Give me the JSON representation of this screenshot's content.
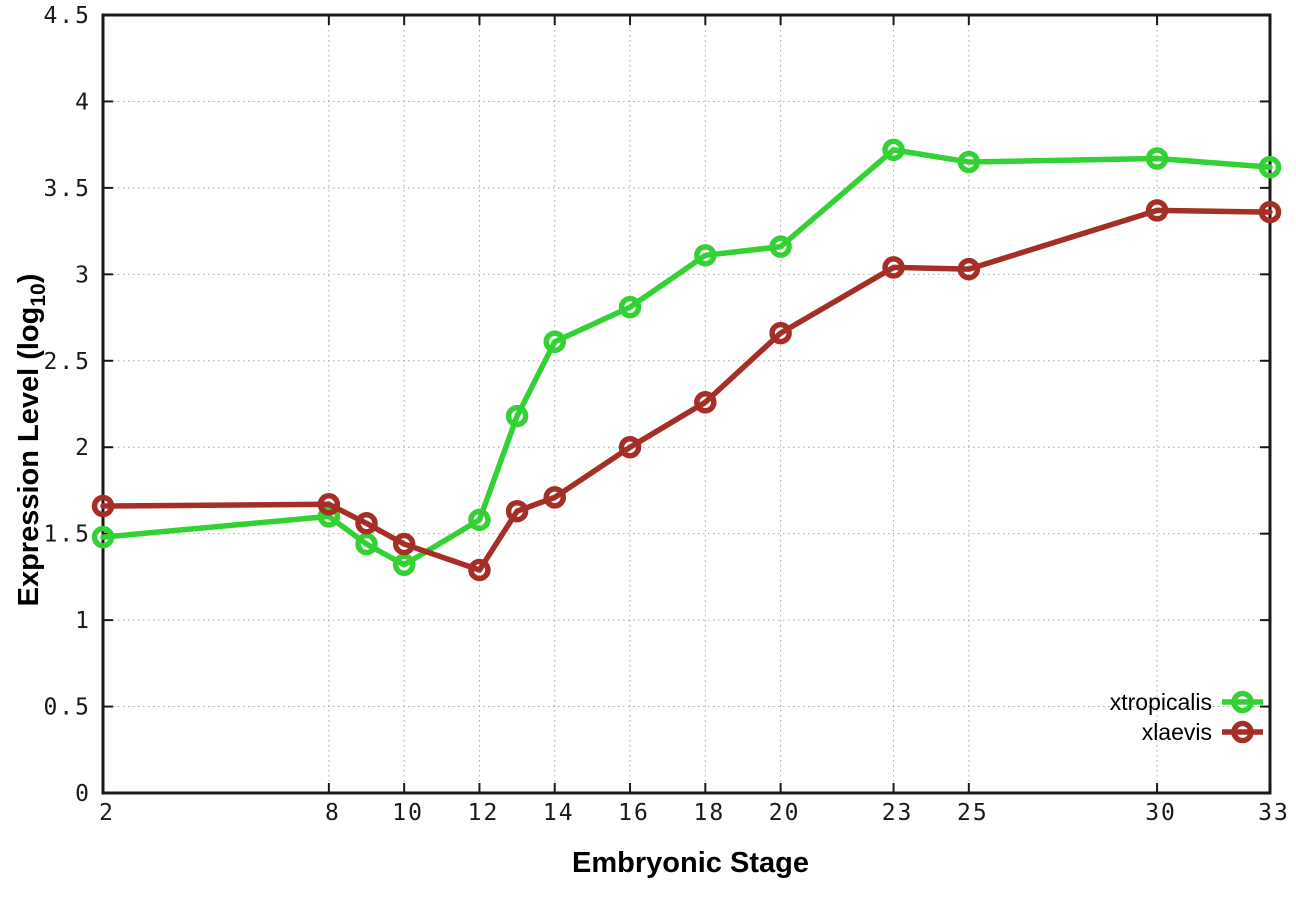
{
  "chart_data": {
    "type": "line",
    "title": "",
    "xlabel": "Embryonic Stage",
    "ylabel": "Expression Level (log10)",
    "ylabel_parts": {
      "main": "Expression Level (log",
      "sub": "10",
      "end": ")"
    },
    "xlim": [
      2,
      33
    ],
    "ylim": [
      0,
      4.5
    ],
    "grid": true,
    "legend_position": "bottom-right",
    "x_ticks": [
      2,
      8,
      10,
      12,
      14,
      16,
      18,
      20,
      23,
      25,
      30,
      33
    ],
    "x_tick_labels": [
      "2",
      "8",
      "10",
      "12",
      "14",
      "16",
      "18",
      "20",
      "23",
      "25",
      "30",
      "33"
    ],
    "y_ticks": [
      0,
      0.5,
      1,
      1.5,
      2,
      2.5,
      3,
      3.5,
      4,
      4.5
    ],
    "y_tick_labels": [
      "0",
      "0.5",
      "1",
      "1.5",
      "2",
      "2.5",
      "3",
      "3.5",
      "4",
      "4.5"
    ],
    "x": [
      2,
      8,
      9,
      10,
      12,
      13,
      14,
      16,
      18,
      20,
      23,
      25,
      30,
      33
    ],
    "series": [
      {
        "name": "xtropicalis",
        "color": "#33d133",
        "marker": "open-circle",
        "values": [
          1.48,
          1.6,
          1.44,
          1.32,
          1.58,
          2.18,
          2.61,
          2.81,
          3.11,
          3.16,
          3.72,
          3.65,
          3.67,
          3.62
        ]
      },
      {
        "name": "xlaevis",
        "color": "#a52e26",
        "marker": "open-circle",
        "values": [
          1.66,
          1.67,
          1.56,
          1.44,
          1.29,
          1.63,
          1.71,
          2.0,
          2.26,
          2.66,
          3.04,
          3.03,
          3.37,
          3.36
        ]
      }
    ]
  },
  "colors": {
    "background": "#ffffff",
    "border": "#1a1a1a",
    "grid": "#a8a8a8",
    "text": "#000000"
  }
}
